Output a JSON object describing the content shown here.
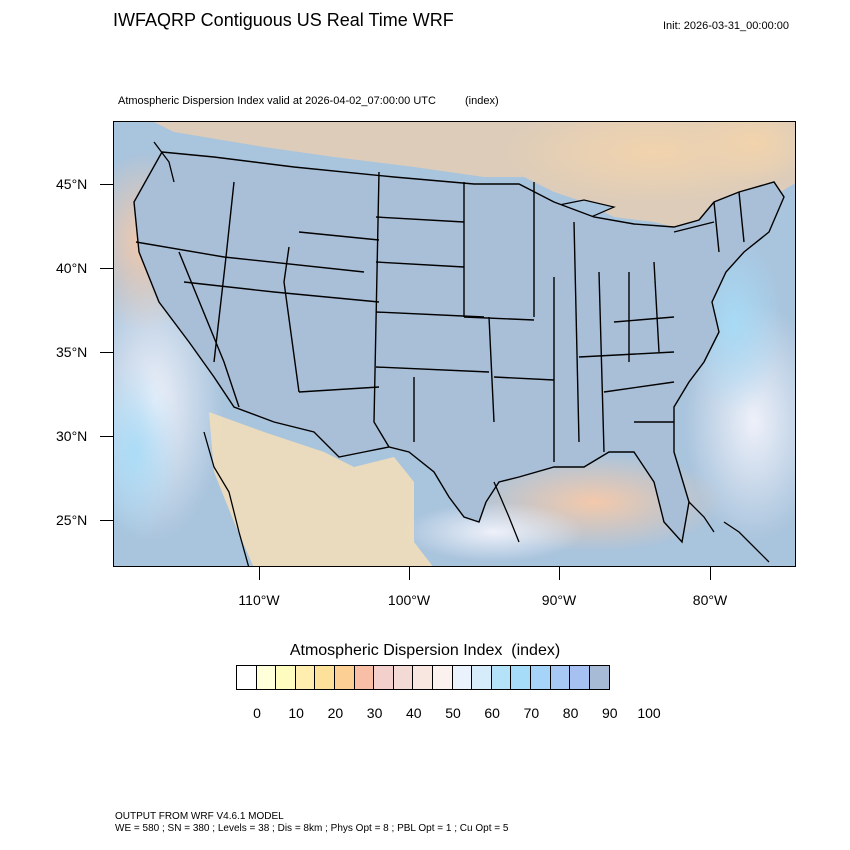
{
  "title": "IWFAQRP Contiguous US Real Time WRF",
  "init": "Init: 2026-03-31_00:00:00",
  "subtitle": "Atmospheric Dispersion Index valid at 2026-04-02_07:00:00 UTC",
  "subtitle_units": "(index)",
  "map": {
    "latitude_labels": [
      "45°N",
      "40°N",
      "35°N",
      "30°N",
      "25°N"
    ],
    "longitude_labels": [
      "110°W",
      "100°W",
      "90°W",
      "80°W"
    ],
    "ocean_color": "#a9c4dd",
    "land_color": "#a9bfd8"
  },
  "legend": {
    "title": "Atmospheric Dispersion Index",
    "units": "(index)",
    "tick_labels": [
      "0",
      "10",
      "20",
      "30",
      "40",
      "50",
      "60",
      "70",
      "80",
      "90",
      "100"
    ],
    "colors": [
      "#ffffff",
      "#ffffd9",
      "#fffcc0",
      "#ffeeb0",
      "#fde19a",
      "#fcd095",
      "#f9bfa6",
      "#f3d0cc",
      "#f4dad5",
      "#f8e6e0",
      "#fbf2f0",
      "#eaf2fd",
      "#d7ecfa",
      "#b4e3f9",
      "#a7dcf8",
      "#a6d4f8",
      "#a7c8f3",
      "#a6c0f2",
      "#a8bbd6"
    ]
  },
  "footer": {
    "line1": "OUTPUT FROM WRF V4.6.1 MODEL",
    "line2": "WE = 580 ; SN = 380 ; Levels = 38 ; Dis = 8km ; Phys Opt = 8 ; PBL Opt = 1 ; Cu Opt = 5"
  }
}
